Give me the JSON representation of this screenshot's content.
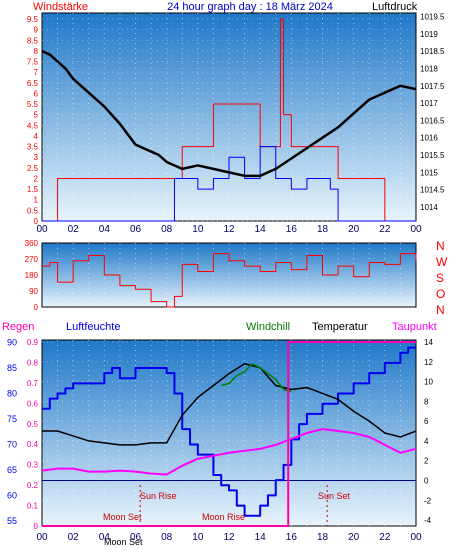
{
  "header": {
    "title": "24 hour graph day : 18 März 2024",
    "wind_label": "Windstärke",
    "pressure_label": "Luftdruck"
  },
  "direction_panel": {
    "compass": [
      "N",
      "W",
      "S",
      "O",
      "N"
    ],
    "degree_ticks": [
      "360",
      "270",
      "180",
      "90",
      "0"
    ]
  },
  "lower_legend": {
    "regen": "Regen",
    "luftfeuchte": "Luftfeuchte",
    "windchill": "Windchill",
    "temperatur": "Temperatur",
    "taupunkt": "Taupunkt"
  },
  "astro": {
    "sun_rise": "Sun Rise",
    "sun_set": "Sun Set",
    "moon_set_1": "Moon Set",
    "moon_rise": "Moon Rise",
    "moon_set_2": "Moon Set"
  },
  "colors": {
    "panel_top": "#1f78c8",
    "panel_bottom": "#e8f4fc",
    "wind_gust": "#ff0000",
    "wind_avg": "#0000ff",
    "pressure": "#000000",
    "humidity": "#0000ee",
    "temperature": "#000000",
    "dewpoint": "#ff00ff",
    "windchill": "#008000",
    "rain": "#ff00aa",
    "title": "#0000cc",
    "wind_label": "#ff0000"
  },
  "chart_data": [
    {
      "type": "line",
      "panel": "wind_and_pressure",
      "xlabel": "",
      "x_ticks": [
        "00",
        "02",
        "04",
        "06",
        "08",
        "10",
        "12",
        "14",
        "16",
        "18",
        "20",
        "22",
        "00"
      ],
      "left_axis": {
        "label": "Windstärke",
        "ticks": [
          "0",
          "0.5",
          "1",
          "1.5",
          "2",
          "2.5",
          "3",
          "3.5",
          "4",
          "4.5",
          "5",
          "5.5",
          "6",
          "6.5",
          "7",
          "7.5",
          "8",
          "8.5",
          "9",
          "9.5"
        ],
        "range": [
          0,
          9.5
        ]
      },
      "right_axis": {
        "label": "Luftdruck",
        "ticks": [
          "1014",
          "1014.5",
          "1015",
          "1015.5",
          "1016",
          "1016.5",
          "1017",
          "1017.5",
          "1018",
          "1018.5",
          "1019",
          "1019.5"
        ],
        "range": [
          1014,
          1019.6
        ]
      },
      "series": [
        {
          "name": "Luftdruck",
          "axis": "right",
          "x": [
            0,
            0.5,
            1,
            1.5,
            2,
            3,
            4,
            5,
            6,
            7,
            7.5,
            8,
            9,
            10,
            11,
            12,
            13,
            14,
            15,
            16,
            17,
            18,
            19,
            20,
            21,
            22,
            23,
            24
          ],
          "values": [
            1018.5,
            1018.4,
            1018.2,
            1018.0,
            1017.7,
            1017.3,
            1016.9,
            1016.4,
            1015.8,
            1015.6,
            1015.5,
            1015.3,
            1015.1,
            1015.2,
            1015.1,
            1015.0,
            1014.9,
            1014.9,
            1015.1,
            1015.4,
            1015.7,
            1016.0,
            1016.3,
            1016.7,
            1017.1,
            1017.3,
            1017.5,
            1017.4
          ]
        },
        {
          "name": "Wind gust",
          "axis": "left",
          "x": [
            0,
            1,
            2,
            3,
            4,
            5,
            6,
            7,
            8,
            9,
            10,
            11,
            12,
            13,
            14,
            15,
            15.3,
            15.5,
            16,
            17,
            18,
            19,
            20,
            21,
            22,
            23,
            24
          ],
          "values": [
            0,
            2,
            2,
            2,
            2,
            2,
            2,
            2,
            2,
            3.5,
            3.5,
            5.5,
            5.5,
            5.5,
            3.5,
            3.5,
            9.5,
            5,
            3.5,
            3.5,
            3.5,
            2,
            2,
            2,
            0,
            0,
            0
          ]
        },
        {
          "name": "Wind average",
          "axis": "left",
          "x": [
            0,
            8,
            8.5,
            9,
            10,
            11,
            12,
            13,
            14,
            15,
            16,
            17,
            18,
            18.5,
            19,
            24
          ],
          "values": [
            0,
            0,
            2,
            2,
            1.5,
            2,
            3,
            2,
            3.5,
            2,
            1.5,
            2,
            2,
            1.5,
            0,
            0
          ]
        }
      ]
    },
    {
      "type": "line",
      "panel": "wind_direction",
      "y_ticks": [
        "360",
        "270",
        "180",
        "90",
        "0"
      ],
      "ylim": [
        0,
        360
      ],
      "series": [
        {
          "name": "Windrichtung",
          "x": [
            0,
            0.5,
            1,
            2,
            3,
            4,
            5,
            6,
            7,
            8,
            8.5,
            9,
            10,
            11,
            12,
            13,
            14,
            15,
            16,
            17,
            18,
            19,
            20,
            21,
            22,
            23,
            24
          ],
          "values": [
            230,
            250,
            140,
            260,
            290,
            180,
            120,
            100,
            30,
            0,
            60,
            240,
            200,
            300,
            260,
            230,
            200,
            250,
            210,
            290,
            180,
            230,
            170,
            250,
            240,
            300,
            260
          ]
        }
      ]
    },
    {
      "type": "line",
      "panel": "humidity_temperature",
      "x_ticks": [
        "00",
        "02",
        "04",
        "06",
        "08",
        "10",
        "12",
        "14",
        "16",
        "18",
        "20",
        "22",
        "00"
      ],
      "humidity_axis": {
        "label": "Luftfeuchte",
        "ticks": [
          "55",
          "60",
          "65",
          "70",
          "75",
          "80",
          "85",
          "90"
        ],
        "range": [
          54,
          90.5
        ]
      },
      "rain_axis": {
        "label": "Regen",
        "ticks": [
          "0",
          "0.1",
          "0.2",
          "0.3",
          "0.4",
          "0.5",
          "0.6",
          "0.7",
          "0.8",
          "0.9"
        ],
        "range": [
          0,
          0.9
        ]
      },
      "temperature_axis": {
        "label": "Temperatur",
        "ticks": [
          "-4",
          "-2",
          "0",
          "2",
          "4",
          "6",
          "8",
          "10",
          "12",
          "14"
        ],
        "range": [
          -4.6,
          14.2
        ]
      },
      "series": [
        {
          "name": "Luftfeuchte",
          "axis": "humidity",
          "x": [
            0,
            0.5,
            1,
            1.5,
            2,
            3,
            4,
            4.5,
            5,
            6,
            7,
            8,
            8.5,
            9,
            9.5,
            10,
            11,
            11.5,
            12,
            12.5,
            13,
            13.5,
            14,
            14.5,
            15,
            15.5,
            16,
            16.5,
            17,
            18,
            19,
            20,
            21,
            22,
            23,
            23.5,
            24
          ],
          "values": [
            77,
            79,
            80,
            81,
            82,
            82,
            84,
            85,
            83,
            85,
            85,
            84,
            80,
            73,
            70,
            68,
            64,
            62,
            61,
            58,
            56,
            56,
            58,
            60,
            63,
            66,
            71,
            74,
            76,
            78,
            80,
            82,
            84,
            86,
            88,
            89,
            89
          ]
        },
        {
          "name": "Temperatur",
          "axis": "temperature",
          "x": [
            0,
            1,
            2,
            3,
            4,
            5,
            6,
            7,
            8,
            8.5,
            9,
            10,
            11,
            12,
            13,
            14,
            15,
            16,
            17,
            18,
            19,
            20,
            21,
            22,
            23,
            24
          ],
          "values": [
            5.0,
            5.0,
            4.5,
            4.0,
            3.8,
            3.6,
            3.6,
            3.8,
            3.8,
            5.2,
            6.6,
            8.4,
            9.6,
            10.8,
            11.8,
            11.4,
            9.6,
            9.2,
            9.4,
            8.8,
            8.2,
            7.0,
            6.0,
            4.8,
            4.4,
            5.0
          ]
        },
        {
          "name": "Windchill",
          "axis": "temperature",
          "x": [
            11.5,
            12,
            12.5,
            13,
            13.5,
            14,
            14.5,
            15,
            15.5,
            16
          ],
          "values": [
            9.6,
            9.8,
            10.6,
            11.0,
            11.8,
            11.4,
            10.8,
            10.2,
            9.2,
            9.0
          ]
        },
        {
          "name": "Taupunkt",
          "axis": "temperature",
          "x": [
            0,
            1,
            2,
            3,
            4,
            5,
            6,
            7,
            8,
            9,
            10,
            11,
            12,
            13,
            14,
            15,
            16,
            17,
            18,
            19,
            20,
            21,
            22,
            23,
            24
          ],
          "values": [
            1.0,
            1.2,
            1.2,
            0.9,
            0.9,
            1.0,
            0.9,
            0.7,
            0.6,
            1.5,
            2.2,
            2.5,
            2.8,
            3.0,
            3.2,
            3.6,
            4.2,
            4.8,
            5.2,
            5.0,
            4.8,
            4.4,
            3.6,
            2.8,
            3.2
          ]
        },
        {
          "name": "Regen",
          "axis": "rain",
          "x": [
            0,
            15.7,
            15.8,
            24
          ],
          "values": [
            0,
            0,
            0.9,
            0.9
          ]
        }
      ],
      "annotations": [
        "Sun Rise",
        "Sun Set",
        "Moon Set",
        "Moon Rise",
        "Moon Set"
      ]
    }
  ]
}
